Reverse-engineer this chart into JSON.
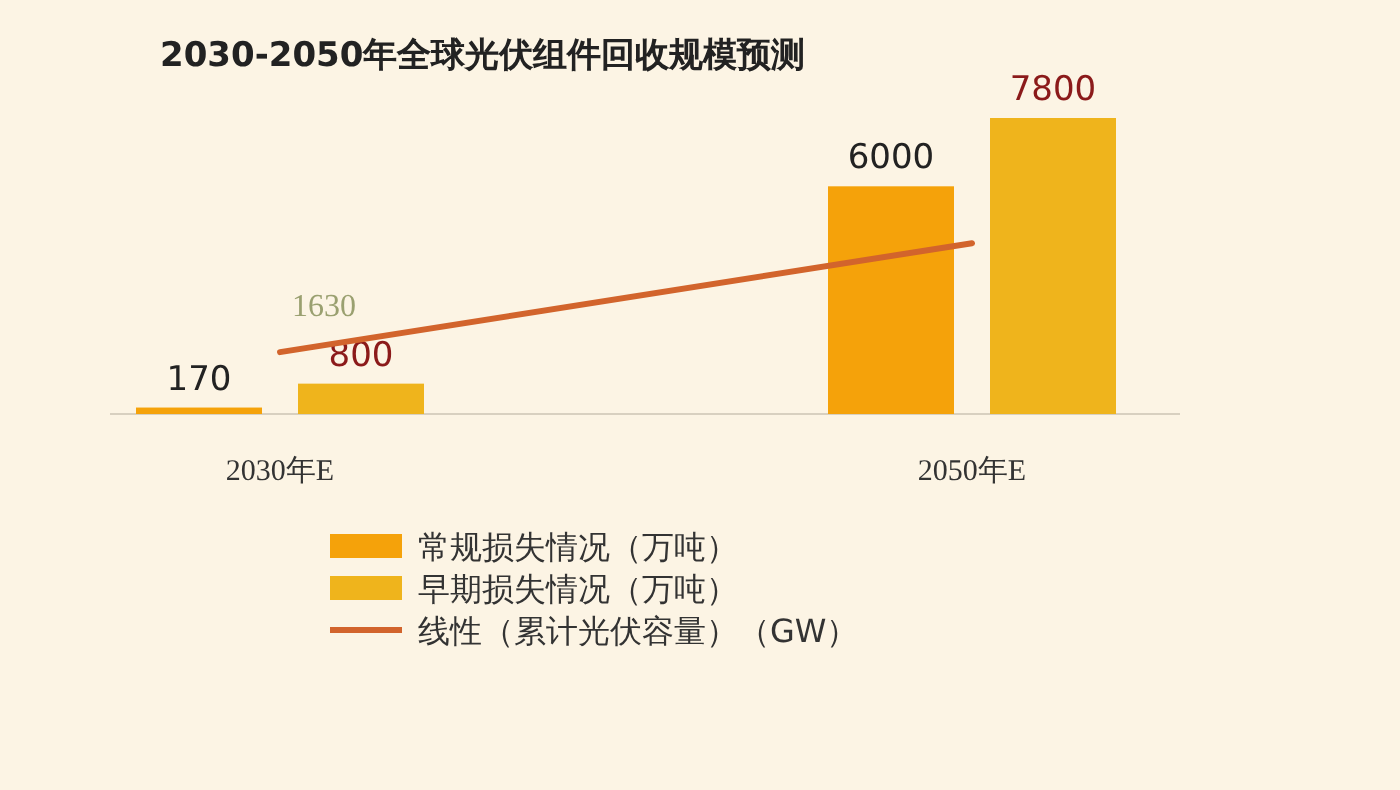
{
  "chart_data": {
    "type": "bar",
    "title": "2030-2050年全球光伏组件回收规模预测",
    "categories": [
      "2030年E",
      "2050年E"
    ],
    "data_labels": true,
    "legend": "bottom",
    "series": [
      {
        "name": "常规损失情况（万吨）",
        "color": "#f5a20a",
        "values": [
          170,
          6000
        ]
      },
      {
        "name": "早期损失情况（万吨）",
        "color": "#efb41c",
        "values": [
          800,
          7800
        ]
      },
      {
        "name": "线性（累计光伏容量）（GW）",
        "type": "line",
        "color": "#d2642c",
        "values": [
          1630,
          4500
        ],
        "value_labels": [
          "1630",
          null
        ]
      }
    ]
  }
}
